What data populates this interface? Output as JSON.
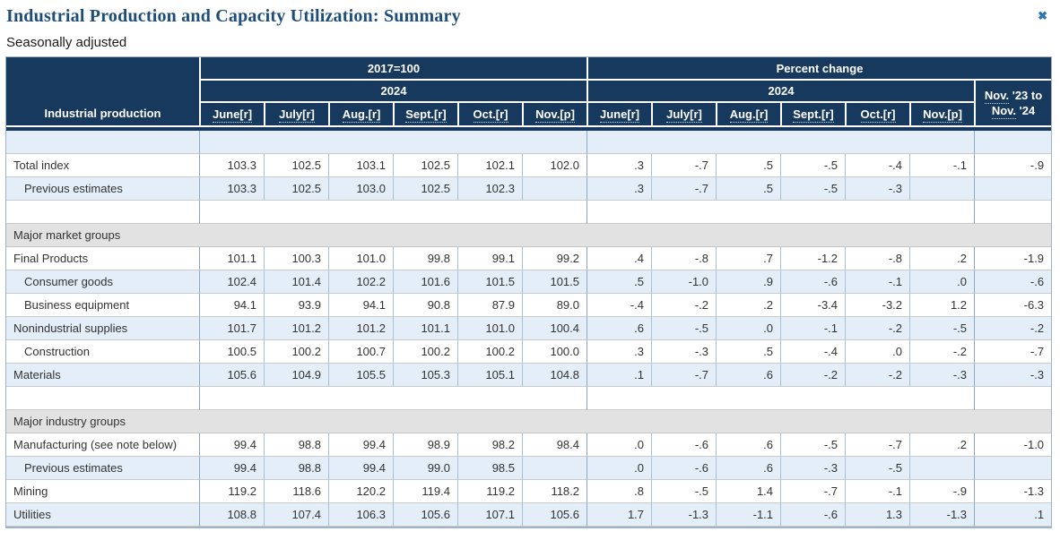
{
  "header": {
    "title": "Industrial Production and Capacity Utilization: Summary",
    "subtitle": "Seasonally adjusted"
  },
  "icons": {
    "close": "✖"
  },
  "colors": {
    "header_navy": "#17395e",
    "title_blue": "#1d4e79",
    "close_blue": "#2e74b5",
    "row_blue": "#e3eef8",
    "section_gray": "#e2e2e2",
    "border_outer": "#9db3c7",
    "text": "#333333"
  },
  "table": {
    "row_label_header": "Industrial production",
    "groups": [
      {
        "label": "2017=100",
        "year": "2024"
      },
      {
        "label": "Percent change",
        "year": "2024"
      }
    ],
    "months": [
      "June[r]",
      "July[r]",
      "Aug.[r]",
      "Sept.[r]",
      "Oct.[r]",
      "Nov.[p]"
    ],
    "last_col": {
      "line1_dotted": "Nov.",
      "line1_rest": " '23 to",
      "line2_dotted": "Nov.",
      "line2_rest": " '24"
    },
    "rows": [
      {
        "kind": "empty",
        "shade": "blue"
      },
      {
        "kind": "data",
        "shade": "white",
        "label": "Total index",
        "indent": 0,
        "index": [
          "103.3",
          "102.5",
          "103.1",
          "102.5",
          "102.1",
          "102.0"
        ],
        "pct": [
          ".3",
          "-.7",
          ".5",
          "-.5",
          "-.4",
          "-.1"
        ],
        "change": "-.9"
      },
      {
        "kind": "data",
        "shade": "blue",
        "label": "Previous estimates",
        "indent": 1,
        "index": [
          "103.3",
          "102.5",
          "103.0",
          "102.5",
          "102.3",
          ""
        ],
        "pct": [
          ".3",
          "-.7",
          ".5",
          "-.5",
          "-.3",
          ""
        ],
        "change": ""
      },
      {
        "kind": "empty",
        "shade": "white"
      },
      {
        "kind": "section",
        "label": "Major market groups"
      },
      {
        "kind": "data",
        "shade": "white",
        "label": "Final Products",
        "indent": 0,
        "index": [
          "101.1",
          "100.3",
          "101.0",
          "99.8",
          "99.1",
          "99.2"
        ],
        "pct": [
          ".4",
          "-.8",
          ".7",
          "-1.2",
          "-.8",
          ".2"
        ],
        "change": "-1.9"
      },
      {
        "kind": "data",
        "shade": "blue",
        "label": "Consumer goods",
        "indent": 1,
        "index": [
          "102.4",
          "101.4",
          "102.2",
          "101.6",
          "101.5",
          "101.5"
        ],
        "pct": [
          ".5",
          "-1.0",
          ".9",
          "-.6",
          "-.1",
          ".0"
        ],
        "change": "-.6"
      },
      {
        "kind": "data",
        "shade": "white",
        "label": "Business equipment",
        "indent": 1,
        "index": [
          "94.1",
          "93.9",
          "94.1",
          "90.8",
          "87.9",
          "89.0"
        ],
        "pct": [
          "-.4",
          "-.2",
          ".2",
          "-3.4",
          "-3.2",
          "1.2"
        ],
        "change": "-6.3"
      },
      {
        "kind": "data",
        "shade": "blue",
        "label": "Nonindustrial supplies",
        "indent": 0,
        "index": [
          "101.7",
          "101.2",
          "101.2",
          "101.1",
          "101.0",
          "100.4"
        ],
        "pct": [
          ".6",
          "-.5",
          ".0",
          "-.1",
          "-.2",
          "-.5"
        ],
        "change": "-.2"
      },
      {
        "kind": "data",
        "shade": "white",
        "label": "Construction",
        "indent": 1,
        "index": [
          "100.5",
          "100.2",
          "100.7",
          "100.2",
          "100.2",
          "100.0"
        ],
        "pct": [
          ".3",
          "-.3",
          ".5",
          "-.4",
          ".0",
          "-.2"
        ],
        "change": "-.7"
      },
      {
        "kind": "data",
        "shade": "blue",
        "label": "Materials",
        "indent": 0,
        "index": [
          "105.6",
          "104.9",
          "105.5",
          "105.3",
          "105.1",
          "104.8"
        ],
        "pct": [
          ".1",
          "-.7",
          ".6",
          "-.2",
          "-.2",
          "-.3"
        ],
        "change": "-.3"
      },
      {
        "kind": "empty",
        "shade": "white"
      },
      {
        "kind": "section",
        "label": "Major industry groups"
      },
      {
        "kind": "data",
        "shade": "white",
        "label": "Manufacturing (see note below)",
        "indent": 0,
        "index": [
          "99.4",
          "98.8",
          "99.4",
          "98.9",
          "98.2",
          "98.4"
        ],
        "pct": [
          ".0",
          "-.6",
          ".6",
          "-.5",
          "-.7",
          ".2"
        ],
        "change": "-1.0"
      },
      {
        "kind": "data",
        "shade": "blue",
        "label": "Previous estimates",
        "indent": 1,
        "index": [
          "99.4",
          "98.8",
          "99.4",
          "99.0",
          "98.5",
          ""
        ],
        "pct": [
          ".0",
          "-.6",
          ".6",
          "-.3",
          "-.5",
          ""
        ],
        "change": ""
      },
      {
        "kind": "data",
        "shade": "white",
        "label": "Mining",
        "indent": 0,
        "index": [
          "119.2",
          "118.6",
          "120.2",
          "119.4",
          "119.2",
          "118.2"
        ],
        "pct": [
          ".8",
          "-.5",
          "1.4",
          "-.7",
          "-.1",
          "-.9"
        ],
        "change": "-1.3"
      },
      {
        "kind": "data",
        "shade": "blue",
        "label": "Utilities",
        "indent": 0,
        "index": [
          "108.8",
          "107.4",
          "106.3",
          "105.6",
          "107.1",
          "105.6"
        ],
        "pct": [
          "1.7",
          "-1.3",
          "-1.1",
          "-.6",
          "1.3",
          "-1.3"
        ],
        "change": ".1"
      }
    ]
  }
}
